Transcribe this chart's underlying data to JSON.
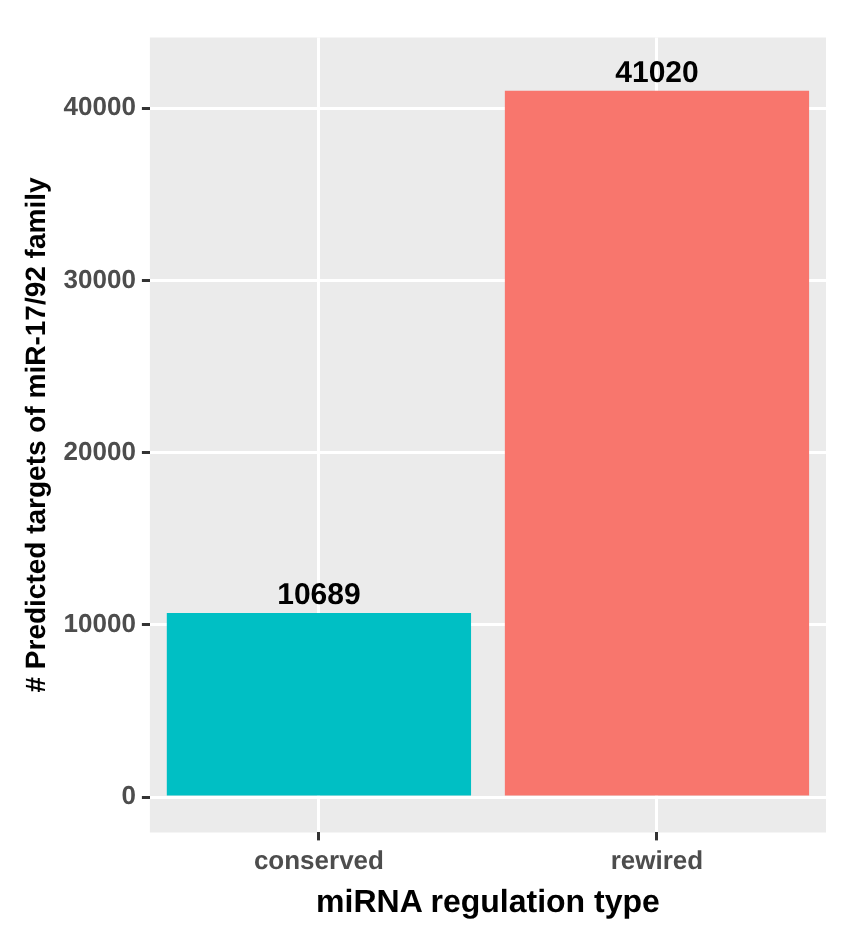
{
  "chart_data": {
    "type": "bar",
    "xlabel": "miRNA regulation type",
    "ylabel": "# Predicted targets of miR-17/92 family",
    "categories": [
      "conserved",
      "rewired"
    ],
    "values": [
      10689,
      41020
    ],
    "colors": [
      "#00bfc4",
      "#f8766d"
    ],
    "ylim": [
      -2050,
      44100
    ],
    "yticks": [
      0,
      10000,
      20000,
      30000,
      40000
    ],
    "grid": true,
    "data_labels": true
  }
}
